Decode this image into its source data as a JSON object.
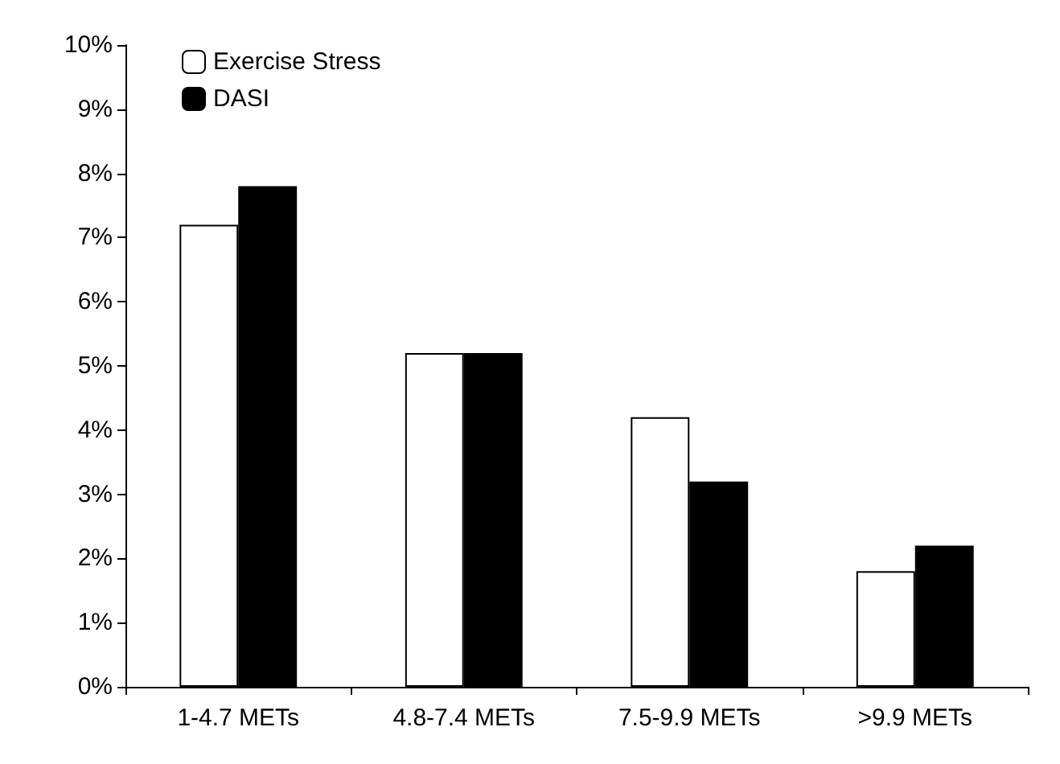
{
  "chart_data": {
    "type": "bar",
    "categories": [
      "1-4.7 METs",
      "4.8-7.4 METs",
      "7.5-9.9 METs",
      ">9.9 METs"
    ],
    "series": [
      {
        "name": "Exercise Stress",
        "color": "#ffffff",
        "values": [
          7.2,
          5.2,
          4.2,
          1.8
        ]
      },
      {
        "name": "DASI",
        "color": "#000000",
        "values": [
          7.8,
          5.2,
          3.2,
          2.2
        ]
      }
    ],
    "ylim": [
      0,
      10
    ],
    "yticks": [
      {
        "value": 0,
        "label": "0%"
      },
      {
        "value": 1,
        "label": "1%"
      },
      {
        "value": 2,
        "label": "2%"
      },
      {
        "value": 3,
        "label": "3%"
      },
      {
        "value": 4,
        "label": "4%"
      },
      {
        "value": 5,
        "label": "5%"
      },
      {
        "value": 6,
        "label": "6%"
      },
      {
        "value": 7,
        "label": "7%"
      },
      {
        "value": 8,
        "label": "8%"
      },
      {
        "value": 9,
        "label": "9%"
      },
      {
        "value": 10,
        "label": "10%"
      }
    ],
    "grid": false,
    "legend": "top left"
  }
}
